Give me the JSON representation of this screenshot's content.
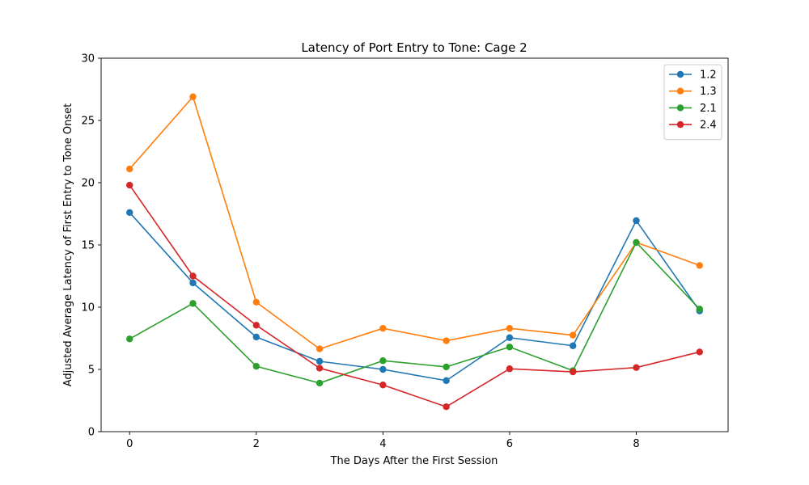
{
  "chart_data": {
    "type": "line",
    "title": "Latency of Port Entry to Tone: Cage 2",
    "xlabel": "The Days After the First Session",
    "ylabel": "Adjusted Average Latency of First Entry to Tone Onset",
    "x": [
      0,
      1,
      2,
      3,
      4,
      5,
      6,
      7,
      8,
      9
    ],
    "xlim": [
      -0.45,
      9.45
    ],
    "ylim": [
      0,
      30
    ],
    "xticks": [
      0,
      2,
      4,
      6,
      8
    ],
    "yticks": [
      0,
      5,
      10,
      15,
      20,
      25,
      30
    ],
    "grid": false,
    "legend_position": "top-right",
    "series": [
      {
        "name": "1.2",
        "color": "#1f77b4",
        "values": [
          17.6,
          11.95,
          7.6,
          5.65,
          5.0,
          4.1,
          7.55,
          6.9,
          16.95,
          9.7
        ]
      },
      {
        "name": "1.3",
        "color": "#ff7f0e",
        "values": [
          21.1,
          26.9,
          10.4,
          6.65,
          8.3,
          7.3,
          8.3,
          7.75,
          15.2,
          13.35
        ]
      },
      {
        "name": "2.1",
        "color": "#2ca02c",
        "values": [
          7.45,
          10.3,
          5.25,
          3.9,
          5.7,
          5.2,
          6.8,
          4.9,
          15.2,
          9.85
        ]
      },
      {
        "name": "2.4",
        "color": "#d62728",
        "values": [
          19.8,
          12.5,
          8.55,
          5.1,
          3.75,
          2.0,
          5.05,
          4.8,
          5.15,
          6.4
        ]
      }
    ]
  }
}
